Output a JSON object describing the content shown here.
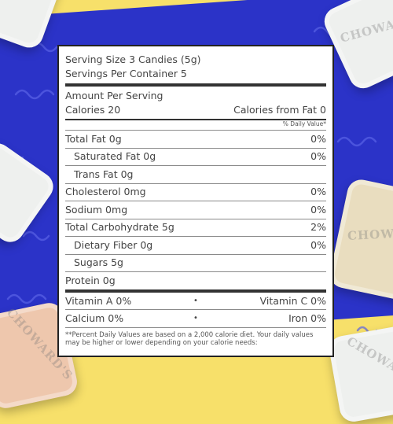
{
  "serving": {
    "size": "Serving Size 3 Candies (5g)",
    "per_container": "Servings Per Container 5"
  },
  "amount_header": "Amount Per Serving",
  "calories": {
    "label": "Calories 20",
    "from_fat": "Calories from Fat 0"
  },
  "dv_header": "% Daily Value*",
  "nutrients": [
    {
      "label": "Total Fat 0g",
      "value": "0%"
    },
    {
      "label": "Saturated Fat 0g",
      "value": "0%"
    },
    {
      "label": "Trans Fat 0g",
      "value": ""
    },
    {
      "label": "Cholesterol 0mg",
      "value": "0%"
    },
    {
      "label": "Sodium 0mg",
      "value": "0%"
    },
    {
      "label": "Total Carbohydrate 5g",
      "value": "2%"
    },
    {
      "label": "Dietary Fiber 0g",
      "value": "0%"
    },
    {
      "label": "Sugars 5g",
      "value": ""
    },
    {
      "label": "Protein 0g",
      "value": ""
    }
  ],
  "vitamins": [
    {
      "left": "Vitamin A 0%",
      "dot": "•",
      "right": "Vitamin C 0%"
    },
    {
      "left": "Calcium 0%",
      "dot": "•",
      "right": "Iron 0%"
    }
  ],
  "footnote": "**Percent Daily Values are based on a 2,000 calorie diet. Your daily values may be higher or lower depending on your calorie needs:",
  "colors": {
    "blue": "#2b33c8",
    "yellow": "#f7e06a"
  },
  "candy_text": "CHOWARD'S"
}
